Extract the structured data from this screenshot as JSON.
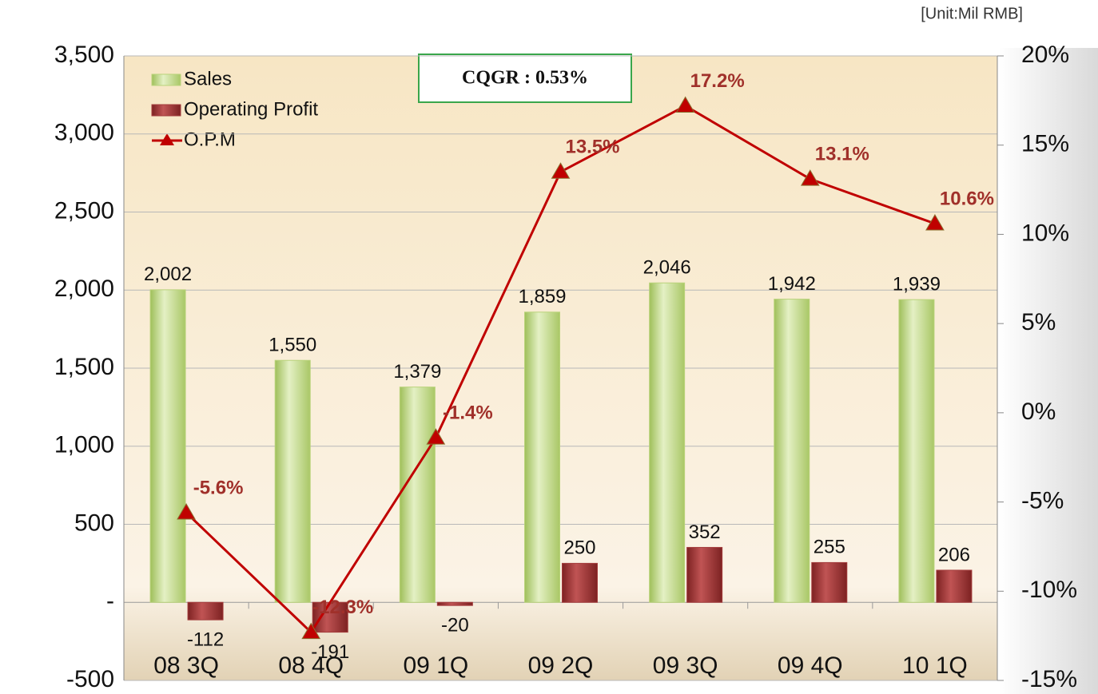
{
  "chart_data": {
    "type": "bar-line",
    "unit_note": "[Unit:Mil RMB]",
    "annotation": "CQGR : 0.53%",
    "categories": [
      "08 3Q",
      "08 4Q",
      "09 1Q",
      "09 2Q",
      "09 3Q",
      "09 4Q",
      "10 1Q"
    ],
    "series": [
      {
        "name": "Sales",
        "color": "#b9d37a",
        "values": [
          2002,
          1550,
          1379,
          1859,
          2046,
          1942,
          1939
        ],
        "value_labels": [
          "2,002",
          "1,550",
          "1,379",
          "1,859",
          "2,046",
          "1,942",
          "1,939"
        ]
      },
      {
        "name": "Operating Profit",
        "color": "#a33b3b",
        "values": [
          -112,
          -191,
          -20,
          250,
          352,
          255,
          206
        ]
      },
      {
        "name": "O.P.M",
        "color": "#c00000",
        "axis": "y2",
        "values": [
          -5.6,
          -12.3,
          -1.4,
          13.5,
          17.2,
          13.1,
          10.6
        ],
        "value_labels": [
          "-5.6%",
          "-12.3%",
          "-1.4%",
          "13.5%",
          "17.2%",
          "13.1%",
          "10.6%"
        ]
      }
    ],
    "ylim": [
      -500,
      3500
    ],
    "yticks": [
      -500,
      {
        "value": 0,
        "label": "-"
      },
      500,
      {
        "value": 1000,
        "label": "1,000"
      },
      {
        "value": 1500,
        "label": "1,500"
      },
      {
        "value": 2000,
        "label": "2,000"
      },
      {
        "value": 2500,
        "label": "2,500"
      },
      {
        "value": 3000,
        "label": "3,000"
      },
      {
        "value": 3500,
        "label": "3,500"
      }
    ],
    "y2lim": [
      -15,
      20
    ],
    "y2ticks": [
      {
        "value": -15,
        "label": "-15%"
      },
      {
        "value": -10,
        "label": "-10%"
      },
      {
        "value": -5,
        "label": "-5%"
      },
      {
        "value": 0,
        "label": "0%"
      },
      {
        "value": 5,
        "label": "5%"
      },
      {
        "value": 10,
        "label": "10%"
      },
      {
        "value": 15,
        "label": "15%"
      },
      {
        "value": 20,
        "label": "20%"
      }
    ],
    "grid": true
  }
}
